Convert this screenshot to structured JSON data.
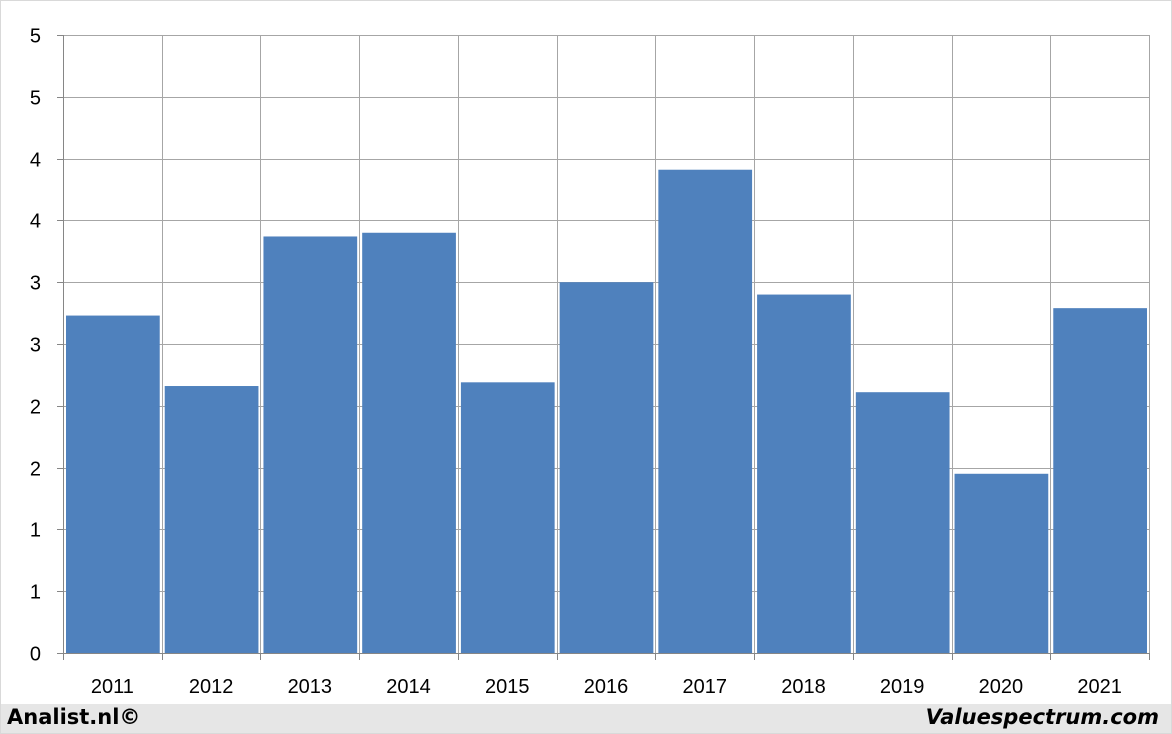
{
  "chart_data": {
    "type": "bar",
    "categories": [
      "2011",
      "2012",
      "2013",
      "2014",
      "2015",
      "2016",
      "2017",
      "2018",
      "2019",
      "2020",
      "2021"
    ],
    "values": [
      2.73,
      2.16,
      3.37,
      3.4,
      2.19,
      3.0,
      3.91,
      2.9,
      2.11,
      1.45,
      2.79
    ],
    "ylim": [
      0,
      5
    ],
    "yticks": [
      0,
      0.5,
      1,
      1.5,
      2,
      2.5,
      3,
      3.5,
      4,
      4.5,
      5
    ],
    "ytick_labels": [
      "0",
      "1",
      "1",
      "2",
      "2",
      "3",
      "3",
      "4",
      "4",
      "5",
      "5"
    ],
    "title": "",
    "xlabel": "",
    "ylabel": "",
    "grid": true,
    "bar_color": "#4f81bd"
  },
  "footer": {
    "left": "Analist.nl©",
    "right": "Valuespectrum.com"
  }
}
